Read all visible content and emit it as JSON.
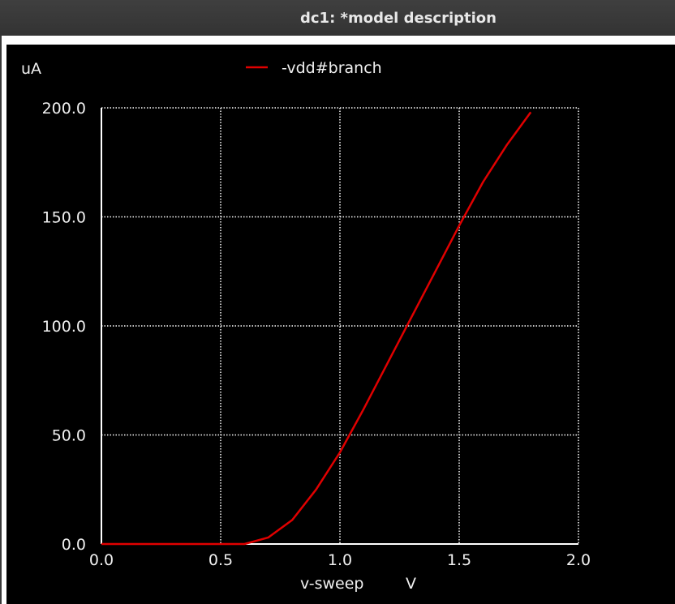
{
  "window": {
    "title": "dc1: *model description"
  },
  "colors": {
    "background": "#000000",
    "axes": "#ffffff",
    "grid": "#ffffff",
    "trace": "#e00000",
    "text": "#f0f0f0"
  },
  "chart_data": {
    "type": "line",
    "xlabel": "v-sweep",
    "xunit": "V",
    "yunit": "uA",
    "xlim": [
      0.0,
      2.0
    ],
    "ylim": [
      0.0,
      200.0
    ],
    "xticks": [
      "0.0",
      "0.5",
      "1.0",
      "1.5",
      "2.0"
    ],
    "yticks": [
      "0.0",
      "50.0",
      "100.0",
      "150.0",
      "200.0"
    ],
    "grid": true,
    "legend": "top-center",
    "series": [
      {
        "name": "-vdd#branch",
        "color": "#e00000",
        "x": [
          0.0,
          0.1,
          0.2,
          0.3,
          0.4,
          0.5,
          0.6,
          0.7,
          0.8,
          0.9,
          1.0,
          1.1,
          1.2,
          1.3,
          1.4,
          1.5,
          1.6,
          1.7,
          1.8
        ],
        "y": [
          0.0,
          0.0,
          0.0,
          0.0,
          0.0,
          0.0,
          0.0,
          3.0,
          11.0,
          25.0,
          42.0,
          62.0,
          83.0,
          104.0,
          125.0,
          146.0,
          166.0,
          183.0,
          198.0
        ]
      }
    ]
  }
}
